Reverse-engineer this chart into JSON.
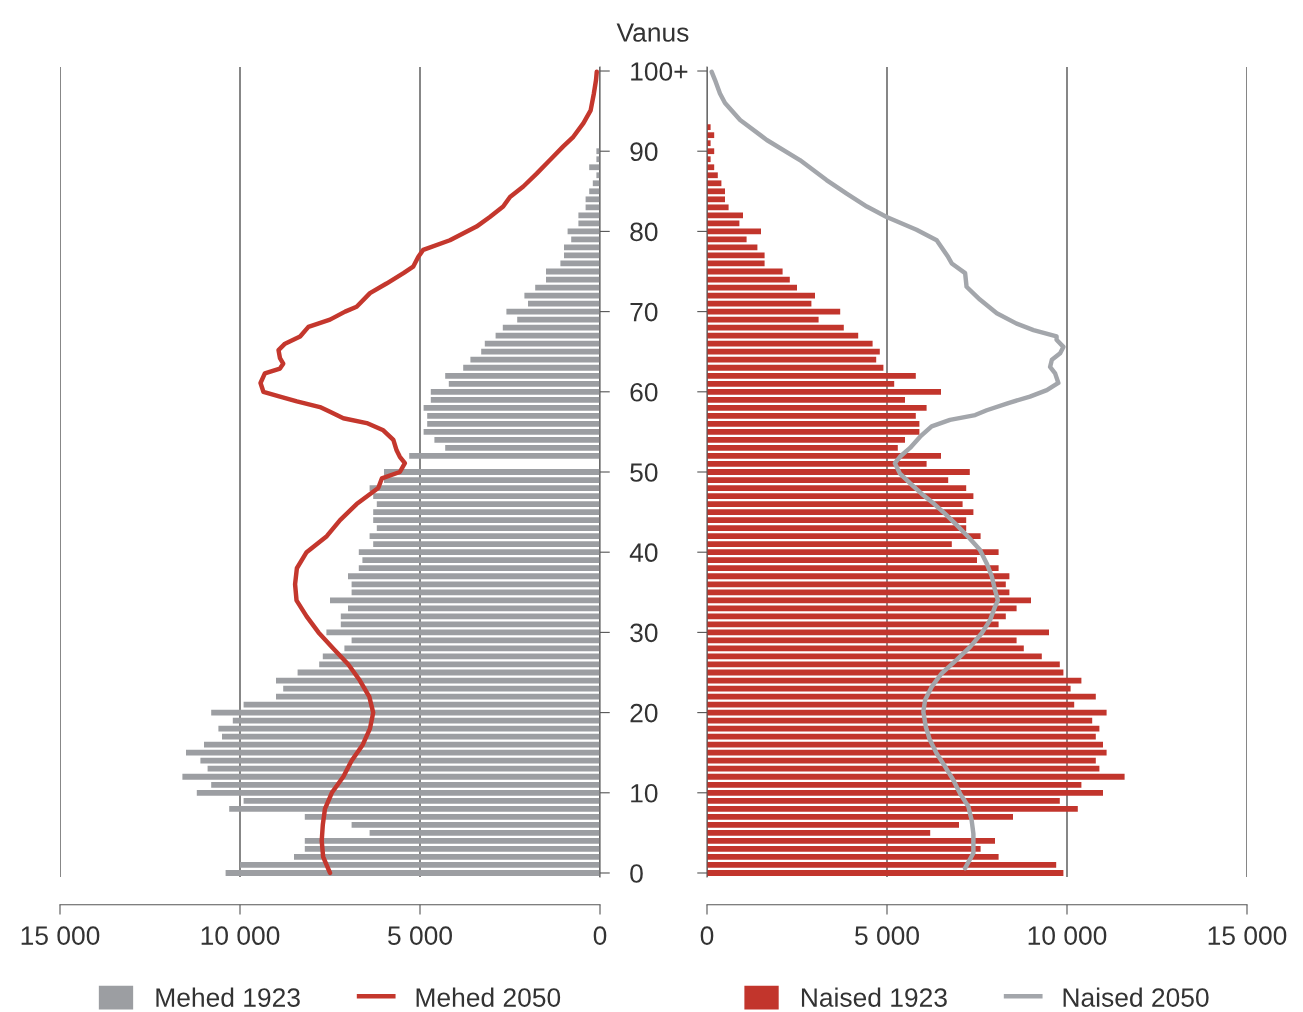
{
  "chart_data": [
    {
      "type": "bar",
      "orientation": "horizontal",
      "ylabel": "Vanus",
      "x": [
        0,
        1,
        2,
        3,
        4,
        5,
        6,
        7,
        8,
        9,
        10,
        11,
        12,
        13,
        14,
        15,
        16,
        17,
        18,
        19,
        20,
        21,
        22,
        23,
        24,
        25,
        26,
        27,
        28,
        29,
        30,
        31,
        32,
        33,
        34,
        35,
        36,
        37,
        38,
        39,
        40,
        41,
        42,
        43,
        44,
        45,
        46,
        47,
        48,
        49,
        50,
        51,
        52,
        53,
        54,
        55,
        56,
        57,
        58,
        59,
        60,
        61,
        62,
        63,
        64,
        65,
        66,
        67,
        68,
        69,
        70,
        71,
        72,
        73,
        74,
        75,
        76,
        77,
        78,
        79,
        80,
        81,
        82,
        83,
        84,
        85,
        86,
        87,
        88,
        89,
        90,
        91,
        92,
        93,
        94,
        95,
        96,
        97,
        98,
        99,
        100
      ],
      "xlim": [
        15000,
        0
      ],
      "xticks": [
        {
          "value": 15000,
          "label": "15 000"
        },
        {
          "value": 10000,
          "label": "10 000"
        },
        {
          "value": 5000,
          "label": "5 000"
        },
        0
      ],
      "ylim": [
        -0.5,
        100.5
      ],
      "yticks": [
        0,
        10,
        20,
        30,
        40,
        50,
        60,
        70,
        80,
        90,
        {
          "value": 100,
          "label": "100+"
        }
      ],
      "grid": "x",
      "legend": "bottom",
      "series": [
        {
          "name": "Mehed 1923",
          "color": "#9c9ea2",
          "values": [
            10400,
            10000,
            8500,
            8200,
            8200,
            6400,
            6900,
            8200,
            10300,
            9900,
            11200,
            10800,
            11600,
            10900,
            11100,
            11500,
            11000,
            10500,
            10600,
            10200,
            10800,
            9900,
            9000,
            8800,
            9000,
            8400,
            7800,
            7700,
            7100,
            6900,
            7600,
            7200,
            7200,
            7000,
            7500,
            6900,
            6900,
            7000,
            6700,
            6600,
            6700,
            6300,
            6400,
            6200,
            6300,
            6300,
            6200,
            6300,
            6400,
            6000,
            6000,
            null,
            5300,
            4300,
            4600,
            4900,
            4800,
            4800,
            4900,
            4700,
            4700,
            4200,
            4300,
            3800,
            3600,
            3300,
            3200,
            2900,
            2700,
            2300,
            2600,
            2000,
            2100,
            1800,
            1500,
            1500,
            1100,
            1000,
            1000,
            800,
            900,
            600,
            600,
            400,
            400,
            300,
            200,
            100,
            300,
            100,
            100,
            null,
            0,
            0,
            0,
            0,
            0,
            0,
            0,
            0,
            0
          ]
        },
        {
          "name": "Mehed 2050",
          "type": "line",
          "color": "#c4372d",
          "x": [
            0,
            2,
            4,
            6,
            8,
            10,
            12,
            14,
            16,
            18,
            20,
            22,
            24,
            26,
            28,
            30,
            32,
            34,
            36,
            38,
            40,
            42,
            44,
            46,
            48,
            49.2,
            50,
            51.1,
            51.9,
            52.7,
            54,
            55.2,
            56.1,
            56.7,
            57.5,
            58.1,
            58.8,
            59.4,
            60,
            61.1,
            62.3,
            62.9,
            63.5,
            64.2,
            65.2,
            66,
            66.9,
            68.1,
            69,
            70,
            70.6,
            72.3,
            73.5,
            74.8,
            75.6,
            76.8,
            77.7,
            78.9,
            80.6,
            81.8,
            83.1,
            84.3,
            85.6,
            87.2,
            88.9,
            90.6,
            91.8,
            93.5,
            95.1,
            97.2,
            98.9,
            99.9
          ],
          "values": [
            7500,
            7690,
            7730,
            7700,
            7640,
            7450,
            7130,
            6900,
            6590,
            6390,
            6300,
            6410,
            6670,
            6990,
            7410,
            7820,
            8150,
            8430,
            8470,
            8420,
            8150,
            7590,
            7220,
            6760,
            6160,
            6060,
            5560,
            5420,
            5560,
            5650,
            5740,
            6020,
            6480,
            7130,
            7500,
            7780,
            8420,
            8890,
            9350,
            9430,
            9310,
            8890,
            8800,
            8890,
            8930,
            8750,
            8330,
            8100,
            7500,
            7080,
            6760,
            6390,
            5930,
            5460,
            5190,
            5050,
            4910,
            4170,
            3430,
            3060,
            2690,
            2500,
            2130,
            1760,
            1390,
            1020,
            740,
            460,
            260,
            170,
            110,
            90
          ]
        }
      ]
    },
    {
      "type": "bar",
      "orientation": "horizontal",
      "x": [
        0,
        1,
        2,
        3,
        4,
        5,
        6,
        7,
        8,
        9,
        10,
        11,
        12,
        13,
        14,
        15,
        16,
        17,
        18,
        19,
        20,
        21,
        22,
        23,
        24,
        25,
        26,
        27,
        28,
        29,
        30,
        31,
        32,
        33,
        34,
        35,
        36,
        37,
        38,
        39,
        40,
        41,
        42,
        43,
        44,
        45,
        46,
        47,
        48,
        49,
        50,
        51,
        52,
        53,
        54,
        55,
        56,
        57,
        58,
        59,
        60,
        61,
        62,
        63,
        64,
        65,
        66,
        67,
        68,
        69,
        70,
        71,
        72,
        73,
        74,
        75,
        76,
        77,
        78,
        79,
        80,
        81,
        82,
        83,
        84,
        85,
        86,
        87,
        88,
        89,
        90,
        91,
        92,
        93,
        94,
        95,
        96,
        97,
        98,
        99,
        100
      ],
      "xlim": [
        0,
        15000
      ],
      "xticks": [
        0,
        {
          "value": 5000,
          "label": "5 000"
        },
        {
          "value": 10000,
          "label": "10 000"
        },
        {
          "value": 15000,
          "label": "15 000"
        }
      ],
      "ylim": [
        -0.5,
        100.5
      ],
      "yticks": [
        0,
        10,
        20,
        30,
        40,
        50,
        60,
        70,
        80,
        90,
        100
      ],
      "tick_labels": "x",
      "grid": "x",
      "legend": "bottom",
      "series": [
        {
          "name": "Naised 1923",
          "color": "#c2352c",
          "values": [
            9900,
            9700,
            8100,
            7600,
            8000,
            6200,
            7000,
            8500,
            10300,
            9800,
            11000,
            10400,
            11600,
            10900,
            10800,
            11100,
            11000,
            10800,
            10900,
            10700,
            11100,
            10200,
            10800,
            10100,
            10400,
            9900,
            9800,
            9300,
            8800,
            8600,
            9500,
            8100,
            8300,
            8600,
            9000,
            8400,
            8300,
            8400,
            8100,
            7500,
            8100,
            6800,
            7600,
            7200,
            7200,
            7400,
            7100,
            7400,
            7200,
            6700,
            7300,
            6100,
            6500,
            5300,
            5500,
            5900,
            5900,
            5800,
            6100,
            5500,
            6500,
            5200,
            5800,
            4900,
            4700,
            4800,
            4600,
            4200,
            3800,
            3100,
            3700,
            2900,
            3000,
            2500,
            2300,
            2100,
            1600,
            1600,
            1400,
            1100,
            1500,
            900,
            1000,
            600,
            500,
            500,
            400,
            300,
            200,
            100,
            200,
            100,
            200,
            100,
            0,
            0,
            0,
            0,
            0,
            0,
            0
          ]
        },
        {
          "name": "Naised 2050",
          "type": "line",
          "color": "#a3a6ab",
          "x": [
            0.6,
            2.5,
            4.9,
            6.6,
            8.3,
            9.9,
            11.6,
            13.3,
            14.9,
            16.6,
            18.2,
            20.1,
            21.6,
            23.2,
            24.9,
            26.6,
            28.2,
            29.9,
            31.5,
            33.2,
            34,
            35.3,
            37,
            38.6,
            40.3,
            41.9,
            43.6,
            44.8,
            46.1,
            47.3,
            48.6,
            49.8,
            51.1,
            51.9,
            53,
            54.4,
            55.7,
            56.5,
            57.1,
            57.7,
            58.6,
            59.4,
            60.2,
            61.1,
            62.3,
            63.1,
            64,
            64.8,
            65.6,
            66.5,
            66.9,
            67.7,
            68.5,
            69.8,
            71.5,
            73.1,
            74.8,
            76,
            76.8,
            78.9,
            80.2,
            81.8,
            83.1,
            84.7,
            86.4,
            88.9,
            91.4,
            93.9,
            96,
            97.2,
            98.9,
            99.9
          ],
          "values": [
            7170,
            7400,
            7400,
            7350,
            7260,
            7030,
            6840,
            6610,
            6380,
            6190,
            6080,
            6010,
            6060,
            6240,
            6520,
            6940,
            7310,
            7630,
            7860,
            8000,
            8080,
            8000,
            7910,
            7770,
            7580,
            7260,
            6890,
            6610,
            6290,
            5960,
            5640,
            5360,
            5220,
            5360,
            5640,
            5920,
            6240,
            6750,
            7450,
            7770,
            8370,
            8970,
            9440,
            9760,
            9670,
            9530,
            9580,
            9810,
            9900,
            9710,
            9710,
            9070,
            8600,
            8050,
            7580,
            7210,
            7170,
            6800,
            6700,
            6380,
            5820,
            4990,
            4440,
            3880,
            3320,
            2580,
            1660,
            920,
            500,
            360,
            220,
            130
          ]
        }
      ]
    }
  ]
}
